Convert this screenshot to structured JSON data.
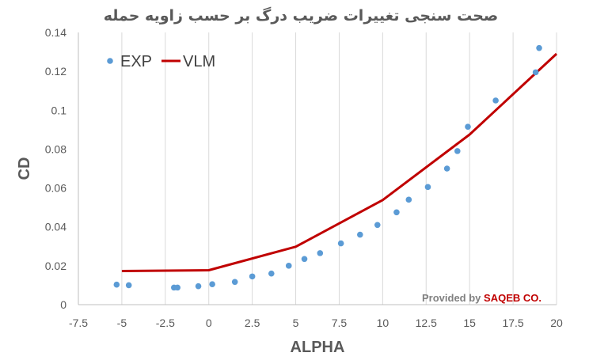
{
  "chart_data": {
    "type": "scatter",
    "title": "صحت سنجی تغییرات ضریب درگ بر حسب زاویه حمله",
    "xlabel": "ALPHA",
    "ylabel": "CD",
    "xlim": [
      -7.5,
      20
    ],
    "ylim": [
      0,
      0.14
    ],
    "x_ticks": [
      "-7.5",
      "-5",
      "-2.5",
      "0",
      "2.5",
      "5",
      "7.5",
      "10",
      "12.5",
      "15",
      "17.5",
      "20"
    ],
    "y_ticks": [
      "0",
      "0.02",
      "0.04",
      "0.06",
      "0.08",
      "0.1",
      "0.12",
      "0.14"
    ],
    "grid": "vertical",
    "legend_position": "top-left",
    "series": [
      {
        "name": "EXP",
        "kind": "markers",
        "color": "#5b9bd5",
        "x": [
          -5.3,
          -4.6,
          -2.0,
          -1.8,
          -0.6,
          0.2,
          1.5,
          2.5,
          3.6,
          4.6,
          5.5,
          6.4,
          7.6,
          8.7,
          9.7,
          10.8,
          11.5,
          12.6,
          13.7,
          14.3,
          14.9,
          16.5,
          18.8,
          19.0
        ],
        "y": [
          0.0103,
          0.01,
          0.0088,
          0.0088,
          0.0095,
          0.0105,
          0.0117,
          0.0145,
          0.016,
          0.02,
          0.0235,
          0.0265,
          0.0315,
          0.036,
          0.041,
          0.0475,
          0.054,
          0.0605,
          0.07,
          0.079,
          0.0915,
          0.105,
          0.1195,
          0.132
        ]
      },
      {
        "name": "VLM",
        "kind": "line",
        "color": "#c00000",
        "x": [
          -5,
          0,
          5,
          10,
          15,
          20
        ],
        "y": [
          0.0173,
          0.0177,
          0.0298,
          0.0538,
          0.0875,
          0.129
        ]
      }
    ]
  },
  "credit": {
    "prefix": "Provided by ",
    "company": "SAQEB CO.",
    "prefix_color": "#808080",
    "company_color": "#c00000"
  }
}
